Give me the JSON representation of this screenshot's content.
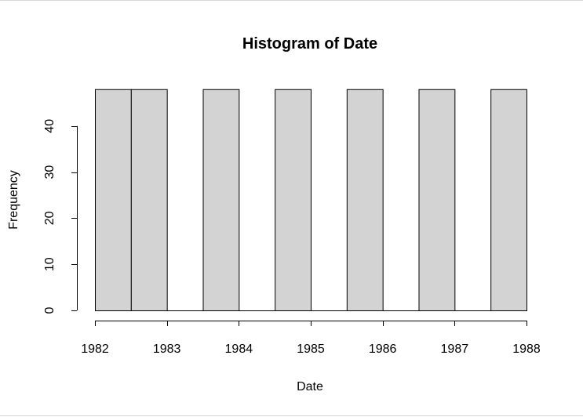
{
  "chart_data": {
    "type": "bar",
    "title": "Histogram of Date",
    "xlabel": "Date",
    "ylabel": "Frequency",
    "bins": [
      {
        "start": 1982.0,
        "end": 1982.5,
        "count": 48
      },
      {
        "start": 1982.5,
        "end": 1983.0,
        "count": 48
      },
      {
        "start": 1983.0,
        "end": 1983.5,
        "count": 0
      },
      {
        "start": 1983.5,
        "end": 1984.0,
        "count": 48
      },
      {
        "start": 1984.0,
        "end": 1984.5,
        "count": 0
      },
      {
        "start": 1984.5,
        "end": 1985.0,
        "count": 48
      },
      {
        "start": 1985.0,
        "end": 1985.5,
        "count": 0
      },
      {
        "start": 1985.5,
        "end": 1986.0,
        "count": 48
      },
      {
        "start": 1986.0,
        "end": 1986.5,
        "count": 0
      },
      {
        "start": 1986.5,
        "end": 1987.0,
        "count": 48
      },
      {
        "start": 1987.0,
        "end": 1987.5,
        "count": 0
      },
      {
        "start": 1987.5,
        "end": 1988.0,
        "count": 48
      }
    ],
    "xlim": [
      1982,
      1988
    ],
    "ylim": [
      0,
      48
    ],
    "x_ticks": [
      1982,
      1983,
      1984,
      1985,
      1986,
      1987,
      1988
    ],
    "x_tick_labels": [
      "1982",
      "1983",
      "1984",
      "1985",
      "1986",
      "1987",
      "1988"
    ],
    "y_ticks": [
      0,
      10,
      20,
      30,
      40
    ],
    "y_tick_labels": [
      "0",
      "10",
      "20",
      "30",
      "40"
    ],
    "grid": false,
    "bar_color": "#d3d3d3",
    "bar_edge_color": "#000000"
  }
}
